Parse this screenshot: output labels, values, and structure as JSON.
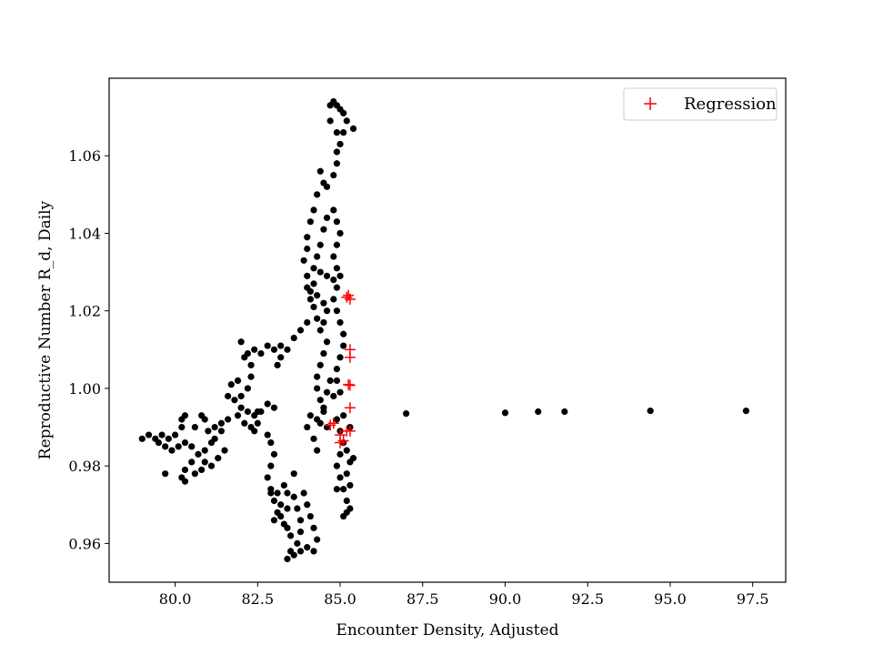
{
  "chart_data": {
    "type": "scatter",
    "title": "",
    "xlabel": "Encounter Density, Adjusted",
    "ylabel": "Reproductive Number R_d, Daily",
    "xlim": [
      78.0,
      98.5
    ],
    "ylim": [
      0.95,
      1.08
    ],
    "xticks": [
      80.0,
      82.5,
      85.0,
      87.5,
      90.0,
      92.5,
      95.0,
      97.5
    ],
    "yticks": [
      0.96,
      0.98,
      1.0,
      1.02,
      1.04,
      1.06
    ],
    "xtick_labels": [
      "80.0",
      "82.5",
      "85.0",
      "87.5",
      "90.0",
      "92.5",
      "95.0",
      "97.5"
    ],
    "ytick_labels": [
      "0.96",
      "0.98",
      "1.00",
      "1.02",
      "1.04",
      "1.06"
    ],
    "grid": false,
    "legend": {
      "placement": "top-right",
      "entries": [
        "Regression"
      ]
    },
    "colors": {
      "observed": "#000000",
      "regression": "#ff0000"
    },
    "series": [
      {
        "marker": "circle",
        "color": "#000000",
        "points": [
          [
            84.7,
            1.073
          ],
          [
            84.8,
            1.074
          ],
          [
            84.9,
            1.073
          ],
          [
            85.0,
            1.072
          ],
          [
            85.1,
            1.071
          ],
          [
            85.2,
            1.069
          ],
          [
            85.1,
            1.066
          ],
          [
            84.9,
            1.066
          ],
          [
            84.7,
            1.069
          ],
          [
            85.4,
            1.067
          ],
          [
            85.0,
            1.063
          ],
          [
            84.9,
            1.061
          ],
          [
            84.9,
            1.058
          ],
          [
            84.8,
            1.055
          ],
          [
            84.6,
            1.052
          ],
          [
            84.4,
            1.056
          ],
          [
            84.5,
            1.053
          ],
          [
            84.3,
            1.05
          ],
          [
            84.2,
            1.046
          ],
          [
            84.1,
            1.043
          ],
          [
            84.0,
            1.039
          ],
          [
            84.0,
            1.036
          ],
          [
            83.9,
            1.033
          ],
          [
            84.0,
            1.029
          ],
          [
            84.2,
            1.031
          ],
          [
            84.3,
            1.034
          ],
          [
            84.4,
            1.037
          ],
          [
            84.5,
            1.041
          ],
          [
            84.6,
            1.044
          ],
          [
            84.8,
            1.046
          ],
          [
            84.9,
            1.043
          ],
          [
            85.0,
            1.04
          ],
          [
            84.9,
            1.037
          ],
          [
            84.8,
            1.034
          ],
          [
            84.9,
            1.031
          ],
          [
            85.0,
            1.029
          ],
          [
            84.8,
            1.028
          ],
          [
            84.6,
            1.029
          ],
          [
            84.4,
            1.03
          ],
          [
            84.2,
            1.027
          ],
          [
            84.1,
            1.025
          ],
          [
            84.0,
            1.026
          ],
          [
            84.3,
            1.024
          ],
          [
            84.5,
            1.022
          ],
          [
            84.6,
            1.02
          ],
          [
            84.5,
            1.017
          ],
          [
            84.4,
            1.015
          ],
          [
            84.3,
            1.018
          ],
          [
            84.2,
            1.021
          ],
          [
            84.1,
            1.023
          ],
          [
            84.9,
            1.026
          ],
          [
            84.8,
            1.023
          ],
          [
            84.9,
            1.02
          ],
          [
            85.0,
            1.017
          ],
          [
            85.1,
            1.014
          ],
          [
            85.1,
            1.011
          ],
          [
            85.0,
            1.008
          ],
          [
            84.9,
            1.005
          ],
          [
            84.9,
            1.002
          ],
          [
            85.0,
            0.999
          ],
          [
            84.6,
            1.012
          ],
          [
            84.5,
            1.009
          ],
          [
            84.4,
            1.006
          ],
          [
            84.3,
            1.003
          ],
          [
            84.3,
            1.0
          ],
          [
            84.4,
            0.997
          ],
          [
            84.5,
            0.995
          ],
          [
            84.6,
            0.999
          ],
          [
            84.7,
            1.002
          ],
          [
            84.8,
            0.998
          ],
          [
            83.6,
            1.013
          ],
          [
            83.8,
            1.015
          ],
          [
            84.0,
            1.017
          ],
          [
            83.4,
            1.01
          ],
          [
            83.2,
            1.011
          ],
          [
            83.0,
            1.01
          ],
          [
            82.8,
            1.011
          ],
          [
            82.6,
            1.009
          ],
          [
            82.4,
            1.01
          ],
          [
            82.2,
            1.009
          ],
          [
            82.0,
            1.012
          ],
          [
            82.1,
            1.008
          ],
          [
            82.3,
            1.006
          ],
          [
            82.3,
            1.003
          ],
          [
            82.2,
            1.0
          ],
          [
            82.0,
            0.998
          ],
          [
            81.8,
            0.997
          ],
          [
            81.6,
            0.998
          ],
          [
            81.7,
            1.001
          ],
          [
            81.9,
            1.002
          ],
          [
            83.2,
            1.008
          ],
          [
            83.1,
            1.006
          ],
          [
            82.8,
            0.996
          ],
          [
            83.0,
            0.995
          ],
          [
            82.6,
            0.994
          ],
          [
            82.4,
            0.993
          ],
          [
            82.2,
            0.994
          ],
          [
            82.0,
            0.995
          ],
          [
            81.9,
            0.993
          ],
          [
            82.1,
            0.991
          ],
          [
            82.3,
            0.99
          ],
          [
            82.5,
            0.991
          ],
          [
            81.4,
            0.989
          ],
          [
            81.2,
            0.99
          ],
          [
            81.0,
            0.989
          ],
          [
            81.1,
            0.986
          ],
          [
            80.9,
            0.984
          ],
          [
            80.7,
            0.983
          ],
          [
            80.9,
            0.981
          ],
          [
            81.1,
            0.98
          ],
          [
            81.3,
            0.982
          ],
          [
            81.5,
            0.984
          ],
          [
            80.5,
            0.981
          ],
          [
            80.3,
            0.979
          ],
          [
            80.6,
            0.978
          ],
          [
            80.8,
            0.979
          ],
          [
            80.2,
            0.977
          ],
          [
            80.3,
            0.976
          ],
          [
            81.4,
            0.991
          ],
          [
            81.6,
            0.992
          ],
          [
            79.7,
            0.978
          ],
          [
            79.0,
            0.987
          ],
          [
            79.2,
            0.988
          ],
          [
            79.4,
            0.987
          ],
          [
            79.6,
            0.988
          ],
          [
            79.8,
            0.987
          ],
          [
            80.0,
            0.988
          ],
          [
            79.5,
            0.986
          ],
          [
            79.7,
            0.985
          ],
          [
            79.9,
            0.984
          ],
          [
            80.1,
            0.985
          ],
          [
            80.3,
            0.986
          ],
          [
            80.5,
            0.985
          ],
          [
            80.2,
            0.99
          ],
          [
            80.2,
            0.992
          ],
          [
            80.3,
            0.993
          ],
          [
            80.8,
            0.993
          ],
          [
            80.9,
            0.992
          ],
          [
            80.6,
            0.99
          ],
          [
            81.2,
            0.987
          ],
          [
            82.8,
            0.988
          ],
          [
            82.9,
            0.986
          ],
          [
            83.0,
            0.983
          ],
          [
            82.9,
            0.98
          ],
          [
            82.8,
            0.977
          ],
          [
            82.9,
            0.974
          ],
          [
            83.0,
            0.971
          ],
          [
            83.1,
            0.968
          ],
          [
            83.0,
            0.966
          ],
          [
            83.3,
            0.965
          ],
          [
            83.2,
            0.97
          ],
          [
            83.4,
            0.973
          ],
          [
            83.3,
            0.975
          ],
          [
            83.1,
            0.973
          ],
          [
            82.9,
            0.973
          ],
          [
            83.2,
            0.967
          ],
          [
            83.4,
            0.969
          ],
          [
            83.6,
            0.972
          ],
          [
            83.7,
            0.969
          ],
          [
            83.8,
            0.966
          ],
          [
            83.8,
            0.963
          ],
          [
            83.7,
            0.96
          ],
          [
            83.5,
            0.958
          ],
          [
            83.4,
            0.956
          ],
          [
            83.6,
            0.957
          ],
          [
            83.8,
            0.958
          ],
          [
            84.0,
            0.959
          ],
          [
            84.2,
            0.958
          ],
          [
            84.3,
            0.961
          ],
          [
            84.2,
            0.964
          ],
          [
            84.1,
            0.967
          ],
          [
            84.0,
            0.97
          ],
          [
            83.9,
            0.973
          ],
          [
            83.6,
            0.978
          ],
          [
            83.5,
            0.962
          ],
          [
            83.4,
            0.964
          ],
          [
            82.5,
            0.994
          ],
          [
            82.4,
            0.989
          ],
          [
            84.0,
            0.99
          ],
          [
            84.1,
            0.993
          ],
          [
            84.3,
            0.992
          ],
          [
            84.5,
            0.994
          ],
          [
            84.4,
            0.991
          ],
          [
            84.6,
            0.99
          ],
          [
            84.2,
            0.987
          ],
          [
            84.3,
            0.984
          ],
          [
            85.3,
            0.99
          ],
          [
            85.1,
            0.993
          ],
          [
            84.9,
            0.992
          ],
          [
            85.0,
            0.989
          ],
          [
            85.3,
            0.981
          ],
          [
            85.4,
            0.982
          ],
          [
            85.2,
            0.984
          ],
          [
            85.0,
            0.983
          ],
          [
            84.9,
            0.98
          ],
          [
            85.0,
            0.977
          ],
          [
            85.1,
            0.974
          ],
          [
            85.2,
            0.971
          ],
          [
            85.2,
            0.968
          ],
          [
            85.1,
            0.967
          ],
          [
            85.3,
            0.969
          ],
          [
            85.3,
            0.975
          ],
          [
            85.2,
            0.978
          ],
          [
            84.9,
            0.974
          ],
          [
            85.1,
            0.986
          ],
          [
            87.0,
            0.9935
          ],
          [
            90.0,
            0.9937
          ],
          [
            91.0,
            0.994
          ],
          [
            91.8,
            0.994
          ],
          [
            94.4,
            0.9942
          ],
          [
            97.3,
            0.9942
          ]
        ]
      },
      {
        "name": "Regression",
        "marker": "plus",
        "color": "#ff0000",
        "points": [
          [
            85.2,
            1.0235
          ],
          [
            85.3,
            1.023
          ],
          [
            85.25,
            1.024
          ],
          [
            85.3,
            1.01
          ],
          [
            85.3,
            1.008
          ],
          [
            85.25,
            1.001
          ],
          [
            85.3,
            1.0008
          ],
          [
            85.3,
            0.995
          ],
          [
            84.7,
            0.9905
          ],
          [
            84.8,
            0.991
          ],
          [
            85.0,
            0.988
          ],
          [
            85.1,
            0.9865
          ],
          [
            85.0,
            0.986
          ],
          [
            85.2,
            0.989
          ],
          [
            85.3,
            0.989
          ]
        ]
      }
    ]
  }
}
